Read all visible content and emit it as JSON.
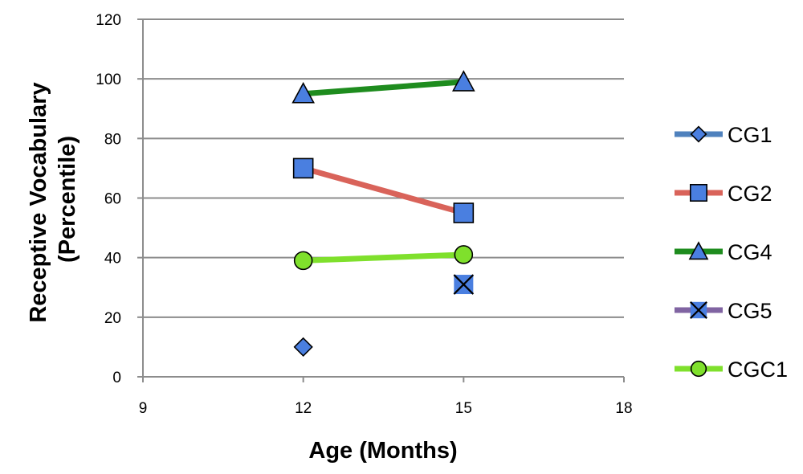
{
  "chart_data": {
    "type": "scatter",
    "xlabel": "Age (Months)",
    "ylabel_lines": [
      "Receptive Vocabulary",
      "(Percentile)"
    ],
    "xlim": [
      9,
      18
    ],
    "ylim": [
      0,
      120
    ],
    "xticks": [
      "9",
      "12",
      "15",
      "18"
    ],
    "yticks": [
      "0",
      "20",
      "40",
      "60",
      "80",
      "100",
      "120"
    ],
    "grid": "horizontal",
    "legend_position": "right",
    "series": [
      {
        "name": "CG1",
        "marker": "diamond",
        "line_color": "#4f81bd",
        "marker_color": "#4a7fe0",
        "points": [
          {
            "x": 12,
            "y": 10
          }
        ]
      },
      {
        "name": "CG2",
        "marker": "square",
        "line_color": "#d9635a",
        "marker_color": "#4a7fe0",
        "points": [
          {
            "x": 12,
            "y": 70
          },
          {
            "x": 15,
            "y": 55
          }
        ]
      },
      {
        "name": "CG4",
        "marker": "triangle",
        "line_color": "#1e8c1e",
        "marker_color": "#4a7fe0",
        "points": [
          {
            "x": 12,
            "y": 95
          },
          {
            "x": 15,
            "y": 99
          }
        ]
      },
      {
        "name": "CG5",
        "marker": "x",
        "line_color": "#8064a2",
        "marker_color": "#4a7fe0",
        "points": [
          {
            "x": 15,
            "y": 31
          }
        ]
      },
      {
        "name": "CGC1",
        "marker": "circle",
        "line_color": "#7fe02c",
        "marker_color": "#7fe02c",
        "points": [
          {
            "x": 12,
            "y": 39
          },
          {
            "x": 15,
            "y": 41
          }
        ]
      }
    ]
  }
}
